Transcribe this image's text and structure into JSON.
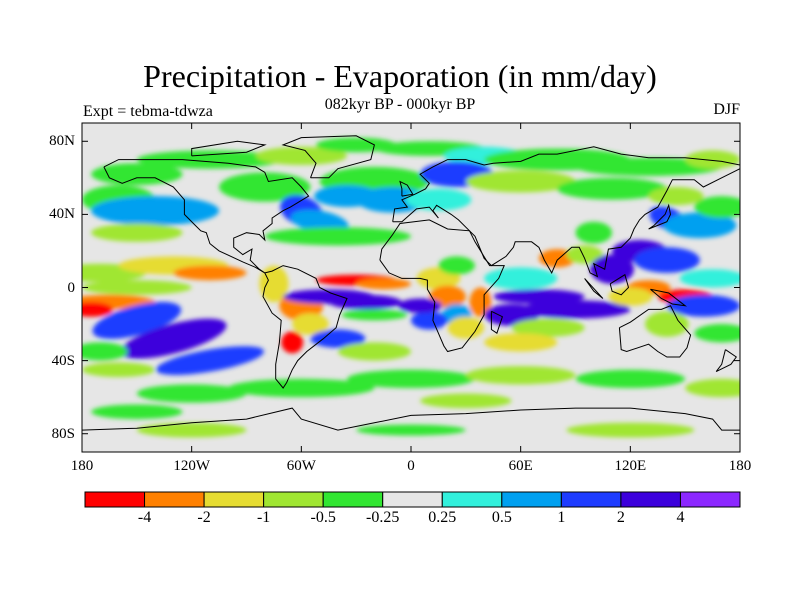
{
  "title": "Precipitation - Evaporation (in mm/day)",
  "subtitle": "082kyr BP - 000kyr BP",
  "experiment": "Expt = tebma-tdwza",
  "season": "DJF",
  "map": {
    "lon_range": [
      -180,
      180
    ],
    "lat_range": [
      -90,
      90
    ],
    "lat_ticks": [
      {
        "lat": 80,
        "label": "80N"
      },
      {
        "lat": 40,
        "label": "40N"
      },
      {
        "lat": 0,
        "label": "0"
      },
      {
        "lat": -40,
        "label": "40S"
      },
      {
        "lat": -80,
        "label": "80S"
      }
    ],
    "lon_ticks": [
      {
        "lon": -180,
        "label": "180"
      },
      {
        "lon": -120,
        "label": "120W"
      },
      {
        "lon": -60,
        "label": "60W"
      },
      {
        "lon": 0,
        "label": "0"
      },
      {
        "lon": 60,
        "label": "60E"
      },
      {
        "lon": 120,
        "label": "120E"
      },
      {
        "lon": 180,
        "label": "180"
      }
    ],
    "background_color": "#e6e6e6"
  },
  "colorbar": {
    "colors": [
      "#ff0000",
      "#ff8000",
      "#e6dc32",
      "#a0e632",
      "#32e632",
      "#e6e6e6",
      "#32f0dc",
      "#00a0f0",
      "#1e3cff",
      "#3c00dc",
      "#8c28ff"
    ],
    "labels": [
      "-4",
      "-2",
      "-1",
      "-0.5",
      "-0.25",
      "0.25",
      "0.5",
      "1",
      "2",
      "4"
    ]
  }
}
